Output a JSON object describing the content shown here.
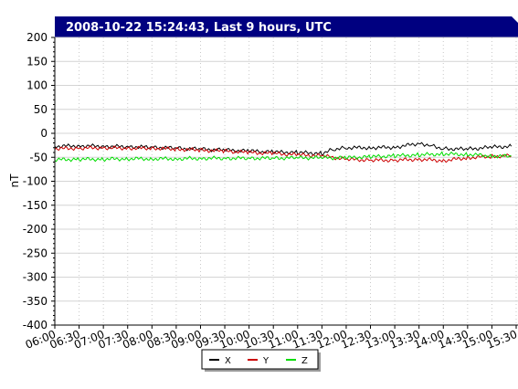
{
  "chart_data": {
    "type": "line",
    "title": "2008-10-22 15:24:43, Last 9 hours, UTC",
    "ylabel": "nT",
    "xlabel": "",
    "ylim": [
      -400,
      200
    ],
    "xlim": [
      "06:00",
      "15:30"
    ],
    "y_ticks": [
      "200",
      "150",
      "100",
      "50",
      "0",
      "-50",
      "-100",
      "-150",
      "-200",
      "-250",
      "-300",
      "-350",
      "-400"
    ],
    "x_ticks": [
      "06:00",
      "06:30",
      "07:00",
      "07:30",
      "08:00",
      "08:30",
      "09:00",
      "09:30",
      "10:00",
      "10:30",
      "11:00",
      "11:30",
      "12:00",
      "12:30",
      "13:00",
      "13:30",
      "14:00",
      "14:30",
      "15:00",
      "15:30"
    ],
    "grid": true,
    "legend_position": "bottom-center",
    "series": [
      {
        "name": "X",
        "color": "#000000",
        "x": [
          "06:00",
          "06:30",
          "07:00",
          "07:30",
          "08:00",
          "08:30",
          "09:00",
          "09:30",
          "10:00",
          "10:30",
          "11:00",
          "11:30",
          "11:45",
          "12:00",
          "12:30",
          "13:00",
          "13:30",
          "13:45",
          "14:00",
          "14:30",
          "15:00",
          "15:24"
        ],
        "values": [
          -27,
          -26,
          -27,
          -28,
          -29,
          -31,
          -33,
          -35,
          -37,
          -39,
          -40,
          -42,
          -33,
          -30,
          -30,
          -29,
          -21,
          -25,
          -32,
          -33,
          -29,
          -27
        ]
      },
      {
        "name": "Y",
        "color": "#cc0000",
        "x": [
          "06:00",
          "06:30",
          "07:00",
          "07:30",
          "08:00",
          "08:30",
          "09:00",
          "09:30",
          "10:00",
          "10:30",
          "11:00",
          "11:30",
          "12:00",
          "12:30",
          "13:00",
          "13:30",
          "14:00",
          "14:30",
          "15:00",
          "15:24"
        ],
        "values": [
          -32,
          -31,
          -30,
          -31,
          -31,
          -33,
          -35,
          -37,
          -40,
          -42,
          -45,
          -47,
          -54,
          -56,
          -56,
          -54,
          -57,
          -51,
          -48,
          -47
        ]
      },
      {
        "name": "Z",
        "color": "#00dd00",
        "x": [
          "06:00",
          "06:30",
          "07:00",
          "07:30",
          "08:00",
          "08:30",
          "09:00",
          "09:30",
          "10:00",
          "10:30",
          "11:00",
          "11:30",
          "12:00",
          "12:30",
          "13:00",
          "13:30",
          "14:00",
          "14:30",
          "15:00",
          "15:24"
        ],
        "values": [
          -55,
          -54,
          -54,
          -53,
          -53,
          -53,
          -52,
          -52,
          -52,
          -52,
          -51,
          -51,
          -51,
          -49,
          -47,
          -45,
          -43,
          -44,
          -47,
          -48
        ]
      }
    ]
  }
}
